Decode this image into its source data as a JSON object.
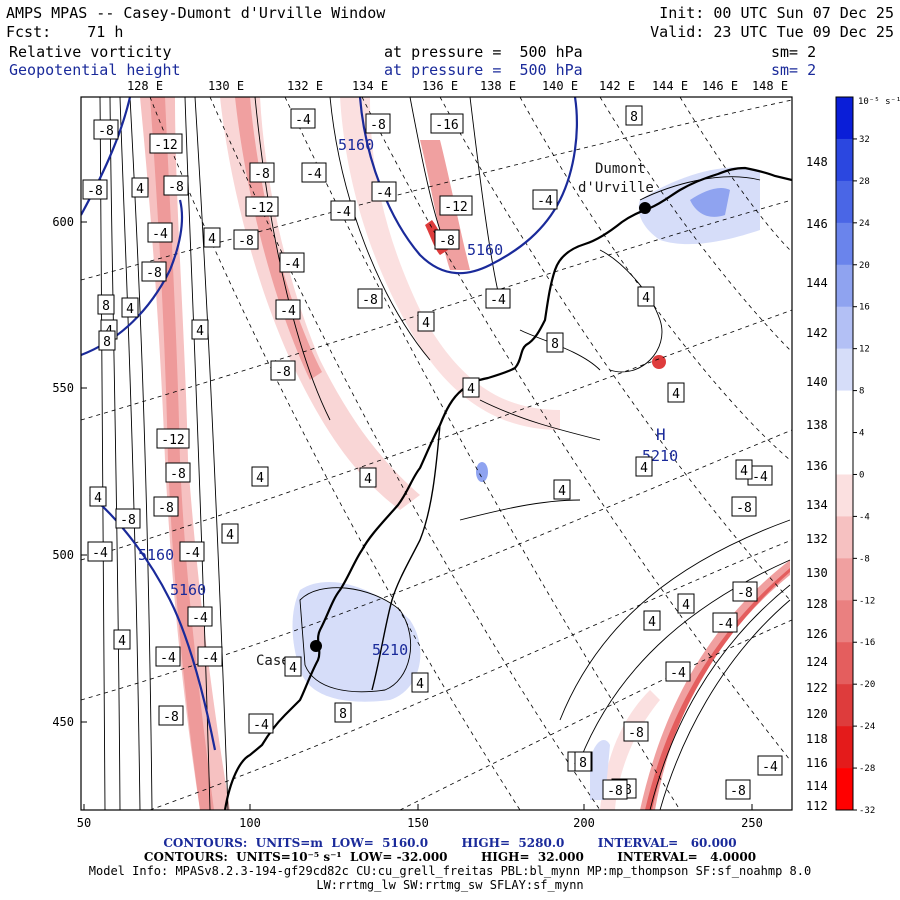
{
  "header": {
    "title": "AMPS MPAS -- Casey-Dumont d'Urville Window",
    "init": "Init: 00 UTC Sun 07 Dec 25",
    "fcst": "Fcst:    71 h",
    "valid": "Valid: 23 UTC Tue 09 Dec 25",
    "field1": {
      "name": "Relative vorticity",
      "level": "at pressure =  500 hPa",
      "sm": "sm= 2"
    },
    "field2": {
      "name": "Geopotential height",
      "level": "at pressure =  500 hPa",
      "sm": "sm= 2"
    }
  },
  "axes": {
    "top_lon": [
      "128 E",
      "130 E",
      "132 E",
      "134 E",
      "136 E",
      "138 E",
      "140 E",
      "142 E",
      "144 E",
      "146 E",
      "148 E"
    ],
    "right_lon": [
      "148 E",
      "146 E",
      "144 E",
      "142 E",
      "140 E",
      "138 E",
      "136 E",
      "134 E",
      "132 E",
      "130 E",
      "128 E",
      "126 E",
      "124 E",
      "122 E",
      "120 E",
      "118 E",
      "116 E",
      "114 E",
      "112 E"
    ],
    "x_ticks": [
      "50",
      "100",
      "150",
      "200",
      "250"
    ],
    "y_ticks": [
      "600",
      "550",
      "500",
      "450"
    ]
  },
  "colorbar": {
    "unit": "10⁻⁵ s⁻¹",
    "labels": [
      "32",
      "28",
      "24",
      "20",
      "16",
      "12",
      "8",
      "4",
      "0",
      "-4",
      "-8",
      "-12",
      "-16",
      "-20",
      "-24",
      "-28",
      "-32"
    ],
    "colors": [
      "#0a1ed8",
      "#2b47e0",
      "#4a66e6",
      "#6a84ec",
      "#8fa3f0",
      "#b3c0f5",
      "#d6ddf9",
      "#ffffff",
      "#ffffff",
      "#fbe0e0",
      "#f6c1c1",
      "#f0a0a0",
      "#ea8080",
      "#e45e5e",
      "#de3c3c",
      "#e41b1b",
      "#ff0000"
    ]
  },
  "places": {
    "casey": "Casey",
    "dumont_1": "Dumont",
    "dumont_2": "d'Urville",
    "h_label": "H",
    "h_value": "5210"
  },
  "height_labels": [
    "5160",
    "5160",
    "5160",
    "5160",
    "5210"
  ],
  "vort_labels": [
    {
      "t": "-8"
    },
    {
      "t": "-12"
    },
    {
      "t": "-8"
    },
    {
      "t": "4"
    },
    {
      "t": "-8"
    },
    {
      "t": "-4"
    },
    {
      "t": "-8"
    },
    {
      "t": "-12"
    },
    {
      "t": "-8"
    },
    {
      "t": "-4"
    },
    {
      "t": "-4"
    },
    {
      "t": "-8"
    },
    {
      "t": "-4"
    },
    {
      "t": "-16"
    },
    {
      "t": "-12"
    },
    {
      "t": "-8"
    },
    {
      "t": "-4"
    },
    {
      "t": "-8"
    },
    {
      "t": "-4"
    },
    {
      "t": "-4"
    },
    {
      "t": "8"
    },
    {
      "t": "8"
    },
    {
      "t": "4"
    },
    {
      "t": "4"
    },
    {
      "t": "4"
    },
    {
      "t": "4"
    },
    {
      "t": "8"
    },
    {
      "t": "4"
    },
    {
      "t": "4"
    },
    {
      "t": "-4"
    },
    {
      "t": "-8"
    },
    {
      "t": "-4"
    },
    {
      "t": "-8"
    },
    {
      "t": "4"
    },
    {
      "t": "8"
    },
    {
      "t": "4"
    },
    {
      "t": "4"
    },
    {
      "t": "4"
    },
    {
      "t": "-12"
    },
    {
      "t": "-8"
    },
    {
      "t": "-8"
    },
    {
      "t": "4"
    },
    {
      "t": "-8"
    },
    {
      "t": "4"
    },
    {
      "t": "-4"
    },
    {
      "t": "-4"
    },
    {
      "t": "4"
    },
    {
      "t": "-4"
    },
    {
      "t": "4"
    },
    {
      "t": "-4"
    },
    {
      "t": "-4"
    },
    {
      "t": "-8"
    },
    {
      "t": "4"
    },
    {
      "t": "4"
    },
    {
      "t": "-8"
    },
    {
      "t": "8"
    },
    {
      "t": "4"
    },
    {
      "t": "-4"
    },
    {
      "t": "-4"
    },
    {
      "t": "-8"
    },
    {
      "t": "-4"
    },
    {
      "t": "4"
    },
    {
      "t": "-8"
    },
    {
      "t": "-4"
    },
    {
      "t": "-8"
    },
    {
      "t": "4"
    },
    {
      "t": "4"
    },
    {
      "t": "-8"
    },
    {
      "t": "-8"
    },
    {
      "t": "8"
    },
    {
      "t": "-4"
    },
    {
      "t": "-8"
    }
  ],
  "footer": {
    "line1": "CONTOURS:  UNITS=m  LOW=  5160.0        HIGH=  5280.0        INTERVAL=   60.000",
    "line2": "CONTOURS:  UNITS=10⁻⁵ s⁻¹  LOW= -32.000        HIGH=  32.000        INTERVAL=   4.0000",
    "line3": "Model Info: MPASv8.2.3-194-gf29cd82c CU:cu_grell_freitas PBL:bl_mynn MP:mp_thompson SF:sf_noahmp 8.0",
    "line4": "LW:rrtmg_lw SW:rrtmg_sw SFLAY:sf_mynn"
  }
}
